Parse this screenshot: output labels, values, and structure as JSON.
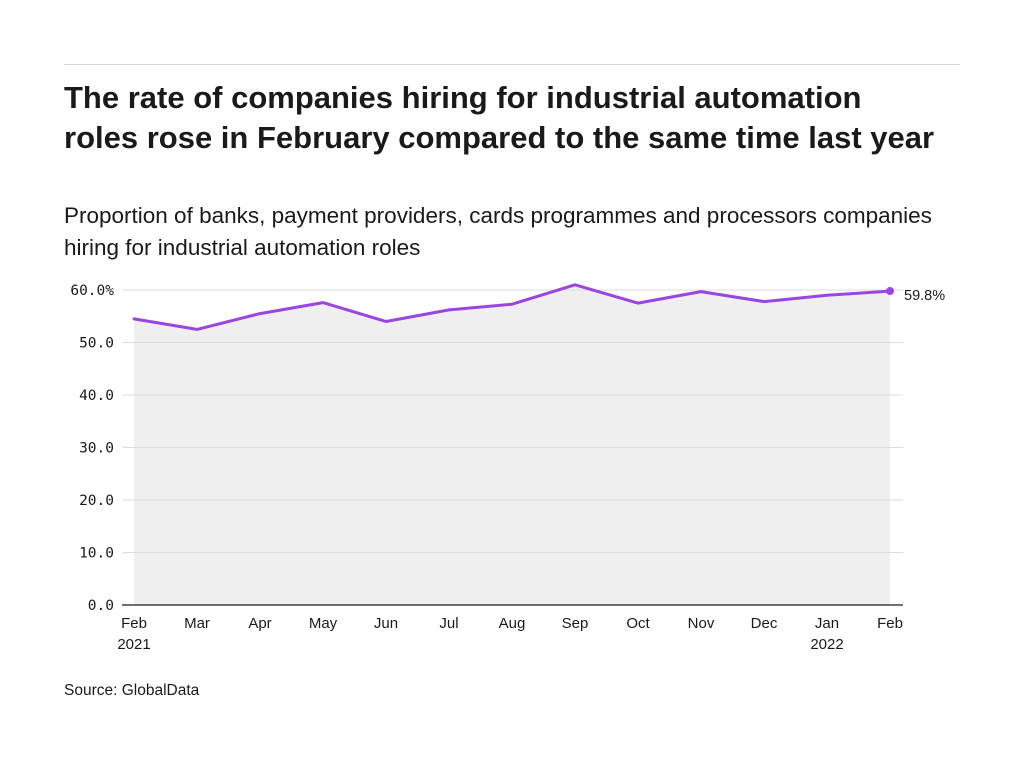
{
  "title": "The rate of companies hiring for industrial automation roles rose in February compared to the same time last year",
  "subtitle": "Proportion of banks, payment providers, cards programmes and processors companies hiring for industrial automation roles",
  "source": "Source: GlobalData",
  "colors": {
    "line": "#9b45e0",
    "area": "#efefef",
    "grid": "#dcdcdc",
    "axis": "#1a1a1a"
  },
  "chart_data": {
    "type": "area",
    "x": [
      "Feb",
      "Mar",
      "Apr",
      "May",
      "Jun",
      "Jul",
      "Aug",
      "Sep",
      "Oct",
      "Nov",
      "Dec",
      "Jan",
      "Feb"
    ],
    "x_sublabels": [
      "2021",
      "",
      "",
      "",
      "",
      "",
      "",
      "",
      "",
      "",
      "",
      "2022",
      ""
    ],
    "series": [
      {
        "values": [
          54.5,
          52.5,
          55.5,
          57.6,
          54.0,
          56.2,
          57.3,
          61.0,
          57.5,
          59.7,
          57.8,
          59.0,
          59.8
        ]
      }
    ],
    "ylim": [
      0,
      60
    ],
    "yticks": [
      0,
      10,
      20,
      30,
      40,
      50,
      60
    ],
    "ytick_labels": [
      "0.0",
      "10.0",
      "20.0",
      "30.0",
      "40.0",
      "50.0",
      "60.0%"
    ],
    "end_label": "59.8%",
    "grid": true
  }
}
